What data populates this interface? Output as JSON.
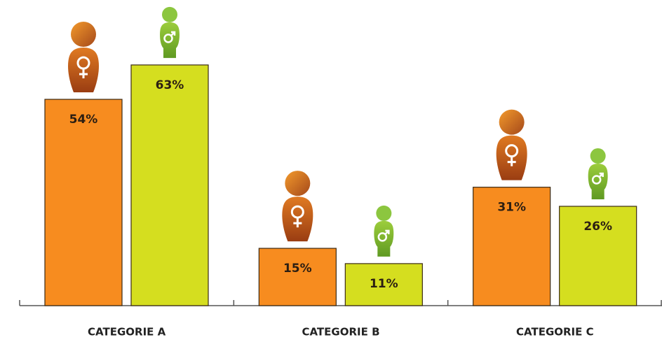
{
  "chart_data": {
    "type": "bar",
    "categories": [
      "CATEGORIE A",
      "CATEGORIE B",
      "CATEGORIE C"
    ],
    "series": [
      {
        "color": "#f78c1f",
        "values": [
          54,
          15,
          31
        ],
        "value_labels": [
          "54%",
          "15%",
          "31%"
        ]
      },
      {
        "color": "#d5de1f",
        "values": [
          63,
          11,
          26
        ],
        "value_labels": [
          "63%",
          "11%",
          "26%"
        ]
      }
    ],
    "ylim": [
      0,
      80
    ]
  }
}
